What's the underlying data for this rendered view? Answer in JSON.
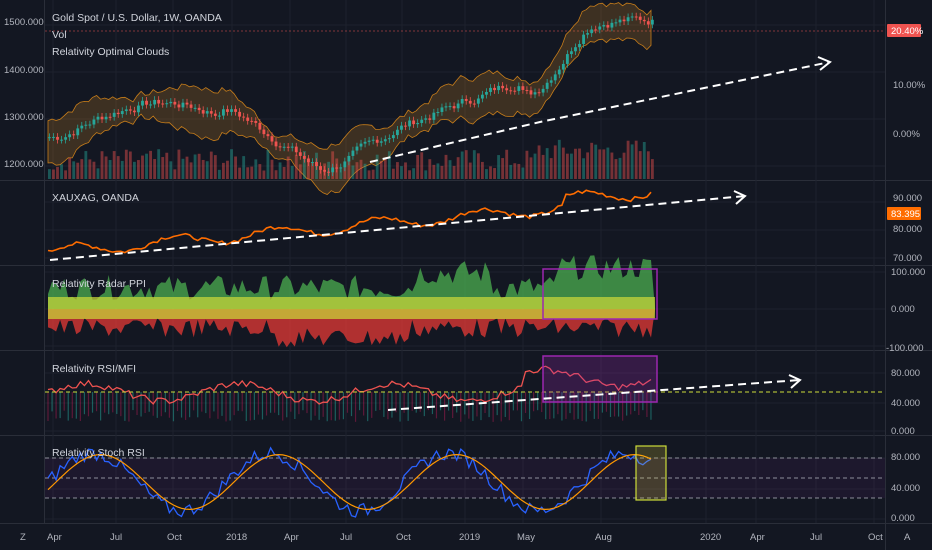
{
  "main": {
    "title": "Gold Spot / U.S. Dollar, 1W, OANDA",
    "vol_label": "Vol",
    "indicator_label": "Relativity Optimal Clouds",
    "y_ticks": [
      "1500.000",
      "1400.000",
      "1300.000",
      "1200.000"
    ],
    "pct_ticks": [
      "10.00%",
      "0.00%"
    ],
    "pct_badge": "20.40%"
  },
  "xauxag": {
    "title": "XAUXAG, OANDA",
    "y_ticks": [
      "90.000",
      "80.000",
      "70.000"
    ],
    "price_badge": "83.395"
  },
  "radar": {
    "title": "Relativity Radar PPI",
    "y_ticks": [
      "100.000",
      "0.000",
      "-100.000"
    ]
  },
  "rsi": {
    "title": "Relativity RSI/MFI",
    "y_ticks": [
      "80.000",
      "40.000",
      "0.000"
    ]
  },
  "stoch": {
    "title": "Relativity Stoch RSI",
    "y_ticks": [
      "80.000",
      "40.000",
      "0.000"
    ]
  },
  "x_axis": [
    "Apr",
    "Jul",
    "Oct",
    "2018",
    "Apr",
    "Jul",
    "Oct",
    "2019",
    "May",
    "Aug",
    "2020",
    "Apr",
    "Jul",
    "Oct"
  ],
  "colors": {
    "background": "#131722",
    "up": "#26a69a",
    "down": "#ef5350",
    "xauxag_line": "#ff6d00",
    "badge_red": "#ef5350",
    "badge_orange": "#ff6d00"
  },
  "icons": {
    "scale_left": "Z",
    "scale_right": "A"
  }
}
